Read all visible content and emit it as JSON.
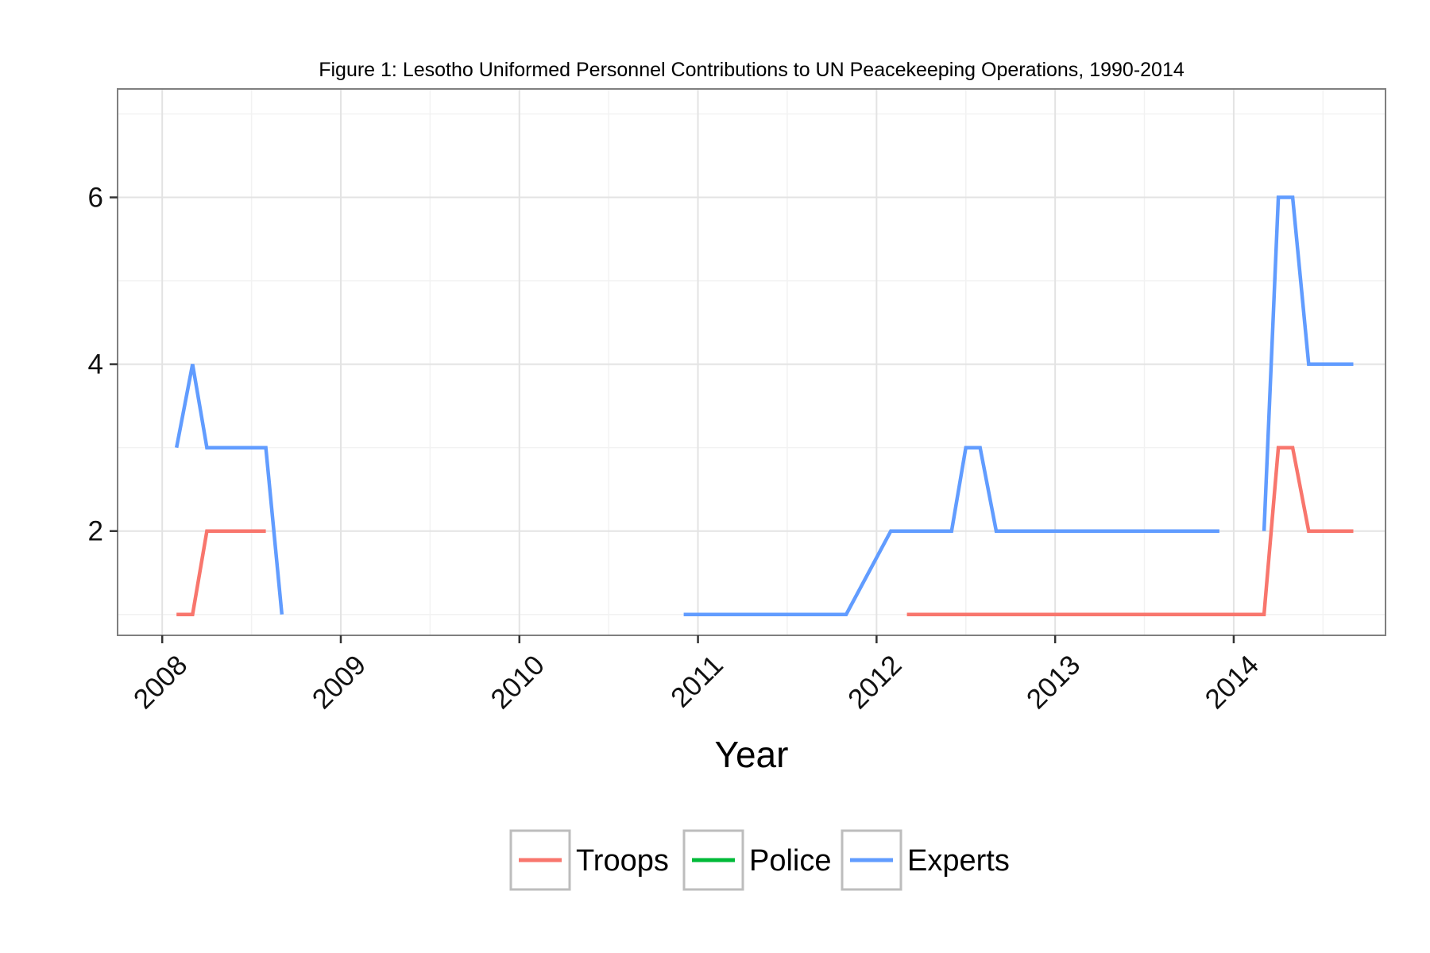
{
  "chart_data": {
    "type": "line",
    "title": "Figure 1: Lesotho Uniformed Personnel Contributions to UN Peacekeeping Operations, 1990-2014",
    "xlabel": "Year",
    "ylabel": "",
    "xlim": [
      2007.75,
      2014.85
    ],
    "ylim": [
      0.75,
      7.3
    ],
    "x_ticks": [
      2008,
      2009,
      2010,
      2011,
      2012,
      2013,
      2014
    ],
    "x_tick_labels": [
      "2008",
      "2009",
      "2010",
      "2011",
      "2012",
      "2013",
      "2014"
    ],
    "y_ticks": [
      2,
      4,
      6
    ],
    "y_tick_labels": [
      "2",
      "4",
      "6"
    ],
    "y_minor": [
      1,
      3,
      5,
      7
    ],
    "grid": true,
    "legend_position": "bottom",
    "series": [
      {
        "name": "Troops",
        "color": "#f8766d",
        "segments": [
          [
            [
              2008.08,
              1
            ],
            [
              2008.17,
              1
            ],
            [
              2008.25,
              2
            ],
            [
              2008.58,
              2
            ]
          ],
          [
            [
              2012.17,
              1
            ],
            [
              2014.17,
              1
            ],
            [
              2014.25,
              3
            ],
            [
              2014.33,
              3
            ],
            [
              2014.42,
              2
            ],
            [
              2014.67,
              2
            ]
          ]
        ]
      },
      {
        "name": "Police",
        "color": "#00ba38",
        "segments": []
      },
      {
        "name": "Experts",
        "color": "#619cff",
        "segments": [
          [
            [
              2008.08,
              3
            ],
            [
              2008.17,
              4
            ],
            [
              2008.25,
              3
            ],
            [
              2008.58,
              3
            ],
            [
              2008.67,
              1
            ]
          ],
          [
            [
              2010.92,
              1
            ],
            [
              2011.83,
              1
            ],
            [
              2012.08,
              2
            ],
            [
              2012.42,
              2
            ],
            [
              2012.5,
              3
            ],
            [
              2012.58,
              3
            ],
            [
              2012.67,
              2
            ],
            [
              2013.92,
              2
            ]
          ],
          [
            [
              2014.17,
              2
            ],
            [
              2014.25,
              6
            ],
            [
              2014.33,
              6
            ],
            [
              2014.42,
              4
            ],
            [
              2014.67,
              4
            ]
          ]
        ]
      }
    ]
  }
}
